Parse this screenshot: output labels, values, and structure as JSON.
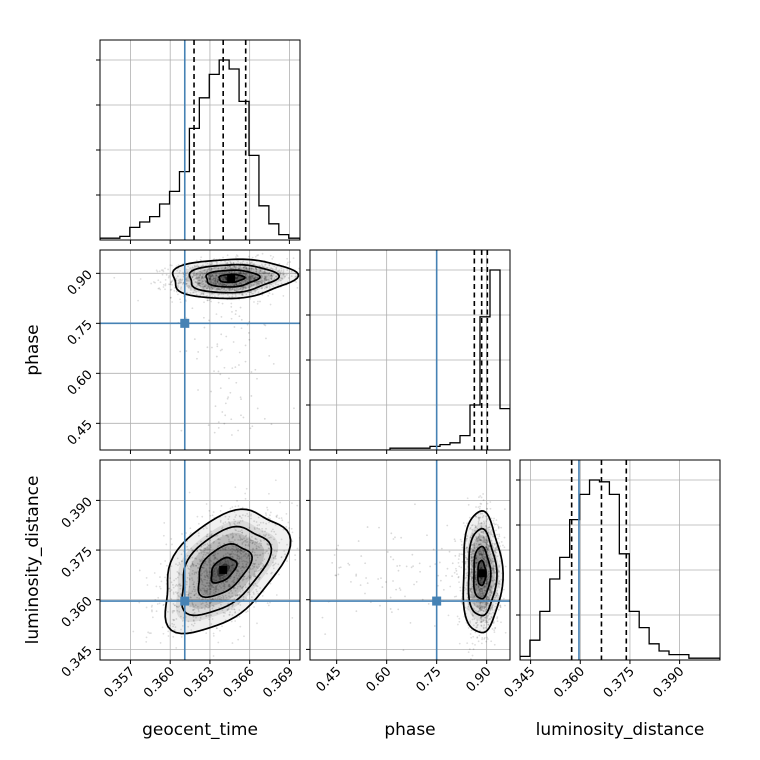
{
  "chart_data": {
    "type": "corner",
    "parameters": [
      "geocent_time",
      "phase",
      "luminosity_distance"
    ],
    "truths": {
      "geocent_time": 0.3611,
      "phase": 0.75,
      "luminosity_distance": 0.3596
    },
    "ranges": {
      "geocent_time": [
        0.3547,
        0.3698
      ],
      "phase": [
        0.37,
        0.97
      ],
      "luminosity_distance": [
        0.3418,
        0.4022
      ]
    },
    "ticks": {
      "geocent_time": [
        0.357,
        0.36,
        0.363,
        0.366,
        0.369
      ],
      "phase": [
        0.45,
        0.6,
        0.75,
        0.9
      ],
      "luminosity_distance": [
        0.345,
        0.36,
        0.375,
        0.39
      ]
    },
    "tick_labels": {
      "geocent_time": [
        "0.357",
        "0.360",
        "0.363",
        "0.366",
        "0.369"
      ],
      "phase": [
        "0.45",
        "0.60",
        "0.75",
        "0.90"
      ],
      "luminosity_distance": [
        "0.345",
        "0.360",
        "0.375",
        "0.390"
      ]
    },
    "quantiles": {
      "geocent_time": [
        0.3618,
        0.364,
        0.3657
      ],
      "phase": [
        0.863,
        0.885,
        0.902
      ],
      "luminosity_distance": [
        0.3574,
        0.3664,
        0.3739
      ]
    },
    "histograms": {
      "geocent_time": {
        "edges": [
          0.3547,
          0.35545,
          0.3562,
          0.35695,
          0.3577,
          0.35845,
          0.3592,
          0.35995,
          0.3607,
          0.36145,
          0.3622,
          0.36295,
          0.3637,
          0.36445,
          0.3652,
          0.36595,
          0.3667,
          0.36745,
          0.3682,
          0.36895,
          0.3698
        ],
        "counts": [
          0.01,
          0.01,
          0.02,
          0.07,
          0.1,
          0.13,
          0.2,
          0.27,
          0.38,
          0.62,
          0.79,
          0.92,
          1.0,
          0.95,
          0.77,
          0.47,
          0.19,
          0.09,
          0.03,
          0.01
        ]
      },
      "phase": {
        "edges": [
          0.37,
          0.4,
          0.43,
          0.46,
          0.49,
          0.52,
          0.55,
          0.58,
          0.61,
          0.64,
          0.67,
          0.7,
          0.73,
          0.76,
          0.79,
          0.82,
          0.85,
          0.88,
          0.91,
          0.94,
          0.97
        ],
        "counts": [
          0.0,
          0.0,
          0.0,
          0.0,
          0.0,
          0.0,
          0.0,
          0.0,
          0.01,
          0.01,
          0.01,
          0.01,
          0.02,
          0.03,
          0.04,
          0.08,
          0.25,
          0.74,
          1.0,
          0.23
        ]
      },
      "luminosity_distance": {
        "edges": [
          0.3418,
          0.3448,
          0.3478,
          0.3508,
          0.3538,
          0.3568,
          0.3598,
          0.3628,
          0.3658,
          0.3688,
          0.3718,
          0.3748,
          0.3778,
          0.3808,
          0.3838,
          0.3868,
          0.3898,
          0.3928,
          0.3958,
          0.3988,
          0.4022
        ],
        "counts": [
          0.02,
          0.11,
          0.27,
          0.45,
          0.57,
          0.78,
          0.92,
          1.0,
          0.99,
          0.92,
          0.59,
          0.27,
          0.18,
          0.09,
          0.05,
          0.03,
          0.03,
          0.01,
          0.01,
          0.01
        ]
      }
    },
    "posterior_peaks": {
      "phase_vs_geocent_time": {
        "x": 0.3646,
        "y": 0.885
      },
      "luminosity_distance_vs_geocent_time": {
        "x": 0.364,
        "y": 0.369
      },
      "luminosity_distance_vs_phase": {
        "x": 0.885,
        "y": 0.368
      }
    },
    "grid": true
  }
}
